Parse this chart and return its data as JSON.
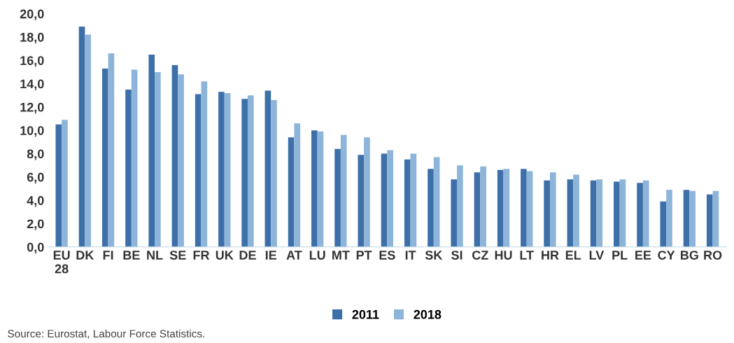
{
  "chart_data": {
    "type": "bar",
    "categories": [
      "EU\n28",
      "DK",
      "FI",
      "BE",
      "NL",
      "SE",
      "FR",
      "UK",
      "DE",
      "IE",
      "AT",
      "LU",
      "MT",
      "PT",
      "ES",
      "IT",
      "SK",
      "SI",
      "CZ",
      "HU",
      "LT",
      "HR",
      "EL",
      "LV",
      "PL",
      "EE",
      "CY",
      "BG",
      "RO"
    ],
    "series": [
      {
        "name": "2011",
        "color": "#3d6fa9",
        "values": [
          10.5,
          18.9,
          15.3,
          13.5,
          16.5,
          15.6,
          13.1,
          13.3,
          12.7,
          13.4,
          9.4,
          10.0,
          8.4,
          7.9,
          8.0,
          7.5,
          6.7,
          5.8,
          6.4,
          6.6,
          6.7,
          5.7,
          5.8,
          5.7,
          5.6,
          5.5,
          3.9,
          4.9,
          4.5
        ]
      },
      {
        "name": "2018",
        "color": "#8db4d9",
        "values": [
          10.9,
          18.2,
          16.6,
          15.2,
          15.0,
          14.8,
          14.2,
          13.2,
          13.0,
          12.6,
          10.6,
          9.9,
          9.6,
          9.4,
          8.3,
          8.0,
          7.7,
          7.0,
          6.9,
          6.7,
          6.5,
          6.4,
          6.2,
          5.8,
          5.8,
          5.7,
          4.9,
          4.8,
          4.8
        ]
      }
    ],
    "ylim": [
      0,
      20
    ],
    "yticks": [
      {
        "value": 0,
        "label": "0,0"
      },
      {
        "value": 2,
        "label": "2,0"
      },
      {
        "value": 4,
        "label": "4,0"
      },
      {
        "value": 6,
        "label": "6,0"
      },
      {
        "value": 8,
        "label": "8,0"
      },
      {
        "value": 10,
        "label": "10,0"
      },
      {
        "value": 12,
        "label": "12,0"
      },
      {
        "value": 14,
        "label": "14,0"
      },
      {
        "value": 16,
        "label": "16,0"
      },
      {
        "value": 18,
        "label": "18,0"
      },
      {
        "value": 20,
        "label": "20,0"
      }
    ],
    "legend": "bottom",
    "annotations": [
      "Source: Eurostat, Labour Force Statistics."
    ]
  }
}
